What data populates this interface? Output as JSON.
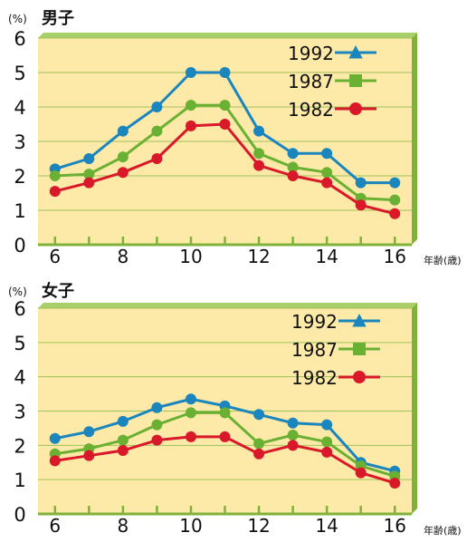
{
  "chart_data": [
    {
      "type": "line",
      "title": "男子",
      "unit_label": "(%)",
      "xlabel": "年齢(歳)",
      "ylabel": "",
      "x": [
        6,
        7,
        8,
        9,
        10,
        11,
        12,
        13,
        14,
        15,
        16
      ],
      "xticks": [
        "6",
        "8",
        "10",
        "12",
        "14",
        "16"
      ],
      "yticks": [
        "0",
        "1",
        "2",
        "3",
        "4",
        "5",
        "6"
      ],
      "ylim": [
        0,
        6
      ],
      "xlim": [
        5.5,
        16.5
      ],
      "grid": true,
      "legend_position": "top-right",
      "series": [
        {
          "name": "1992",
          "marker": "triangle",
          "color": "#1a86bd",
          "values": [
            2.2,
            2.5,
            3.3,
            4.0,
            5.0,
            5.0,
            3.3,
            2.65,
            2.65,
            1.8,
            1.8
          ]
        },
        {
          "name": "1987",
          "marker": "square",
          "color": "#6ab133",
          "values": [
            2.0,
            2.05,
            2.55,
            3.3,
            4.05,
            4.05,
            2.65,
            2.25,
            2.1,
            1.35,
            1.3
          ]
        },
        {
          "name": "1982",
          "marker": "circle",
          "color": "#d9182a",
          "values": [
            1.55,
            1.8,
            2.1,
            2.5,
            3.45,
            3.5,
            2.3,
            2.0,
            1.8,
            1.15,
            0.9
          ]
        }
      ]
    },
    {
      "type": "line",
      "title": "女子",
      "unit_label": "(%)",
      "xlabel": "年齢(歳)",
      "ylabel": "",
      "x": [
        6,
        7,
        8,
        9,
        10,
        11,
        12,
        13,
        14,
        15,
        16
      ],
      "xticks": [
        "6",
        "8",
        "10",
        "12",
        "14",
        "16"
      ],
      "yticks": [
        "0",
        "1",
        "2",
        "3",
        "4",
        "5",
        "6"
      ],
      "ylim": [
        0,
        6
      ],
      "xlim": [
        5.5,
        16.5
      ],
      "grid": true,
      "legend_position": "top-right",
      "series": [
        {
          "name": "1992",
          "marker": "triangle",
          "color": "#1a86bd",
          "values": [
            2.2,
            2.4,
            2.7,
            3.1,
            3.35,
            3.15,
            2.9,
            2.65,
            2.6,
            1.5,
            1.25
          ]
        },
        {
          "name": "1987",
          "marker": "square",
          "color": "#6ab133",
          "values": [
            1.75,
            1.9,
            2.15,
            2.6,
            2.95,
            2.95,
            2.05,
            2.3,
            2.1,
            1.4,
            1.1
          ]
        },
        {
          "name": "1982",
          "marker": "circle",
          "color": "#d9182a",
          "values": [
            1.55,
            1.7,
            1.85,
            2.15,
            2.25,
            2.25,
            1.75,
            2.0,
            1.8,
            1.2,
            0.9
          ]
        }
      ]
    }
  ],
  "colors": {
    "panel_bg": "#fde9a8",
    "axis_frame": "#7fb23a",
    "gridline": "#9ec45a",
    "text": "#111111"
  }
}
